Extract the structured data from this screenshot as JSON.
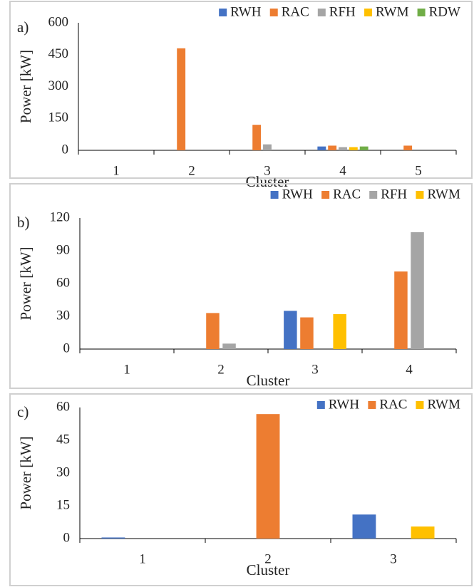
{
  "chart_data": [
    {
      "type": "bar",
      "label": "a)",
      "ylabel": "Power [kW]",
      "xlabel": "Cluster",
      "categories": [
        "1",
        "2",
        "3",
        "4",
        "5"
      ],
      "series": [
        {
          "name": "RWH",
          "color": "#4472c4",
          "values": [
            0,
            0,
            0,
            18,
            0
          ]
        },
        {
          "name": "RAC",
          "color": "#ed7d31",
          "values": [
            0,
            480,
            120,
            22,
            22
          ]
        },
        {
          "name": "RFH",
          "color": "#a5a5a5",
          "values": [
            0,
            0,
            28,
            15,
            0
          ]
        },
        {
          "name": "RWM",
          "color": "#ffc000",
          "values": [
            0,
            0,
            0,
            15,
            0
          ]
        },
        {
          "name": "RDW",
          "color": "#70ad47",
          "values": [
            0,
            0,
            0,
            18,
            0
          ]
        }
      ],
      "ylim": [
        0,
        600
      ],
      "yticks": [
        0,
        150,
        300,
        450,
        600
      ],
      "legend": "top-right"
    },
    {
      "type": "bar",
      "label": "b)",
      "ylabel": "Power [kW]",
      "xlabel": "Cluster",
      "categories": [
        "1",
        "2",
        "3",
        "4"
      ],
      "series": [
        {
          "name": "RWH",
          "color": "#4472c4",
          "values": [
            0,
            0,
            35,
            0
          ]
        },
        {
          "name": "RAC",
          "color": "#ed7d31",
          "values": [
            0,
            33,
            29,
            71
          ]
        },
        {
          "name": "RFH",
          "color": "#a5a5a5",
          "values": [
            0,
            5,
            0,
            107
          ]
        },
        {
          "name": "RWM",
          "color": "#ffc000",
          "values": [
            0,
            0,
            32,
            0
          ]
        }
      ],
      "ylim": [
        0,
        120
      ],
      "yticks": [
        0,
        30,
        60,
        90,
        120
      ],
      "legend": "top-right"
    },
    {
      "type": "bar",
      "label": "c)",
      "ylabel": "Power [kW]",
      "xlabel": "Cluster",
      "categories": [
        "1",
        "2",
        "3"
      ],
      "series": [
        {
          "name": "RWH",
          "color": "#4472c4",
          "values": [
            0.5,
            0,
            11
          ]
        },
        {
          "name": "RAC",
          "color": "#ed7d31",
          "values": [
            0,
            57,
            0
          ]
        },
        {
          "name": "RWM",
          "color": "#ffc000",
          "values": [
            0,
            0,
            5.5
          ]
        }
      ],
      "ylim": [
        0,
        60
      ],
      "yticks": [
        0,
        15,
        30,
        45,
        60
      ],
      "legend": "top-right"
    }
  ]
}
